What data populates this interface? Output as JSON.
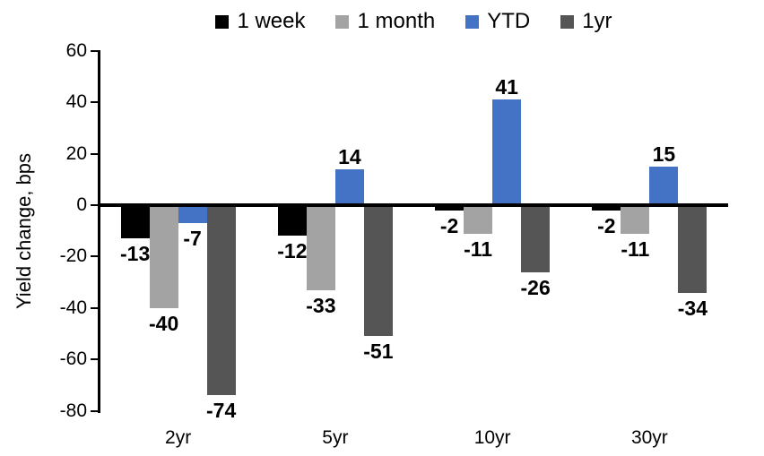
{
  "chart_data": {
    "type": "bar",
    "title": "",
    "xlabel": "",
    "ylabel": "Yield change, bps",
    "categories": [
      "2yr",
      "5yr",
      "10yr",
      "30yr"
    ],
    "series": [
      {
        "name": "1 week",
        "color": "#000000",
        "values": [
          -13,
          -12,
          -2,
          -2
        ]
      },
      {
        "name": "1 month",
        "color": "#A3A3A3",
        "values": [
          -40,
          -33,
          -11,
          -11
        ]
      },
      {
        "name": "YTD",
        "color": "#4472C4",
        "values": [
          -7,
          14,
          41,
          15
        ]
      },
      {
        "name": "1yr",
        "color": "#555555",
        "values": [
          -74,
          -51,
          -26,
          -34
        ]
      }
    ],
    "ylim": [
      -80,
      60
    ],
    "yticks": [
      60,
      40,
      20,
      0,
      -20,
      -40,
      -60,
      -80
    ],
    "grid": false,
    "legend_position": "top",
    "data_labels": true,
    "axis_color": "#000000",
    "background_color": "#FFFFFF"
  }
}
